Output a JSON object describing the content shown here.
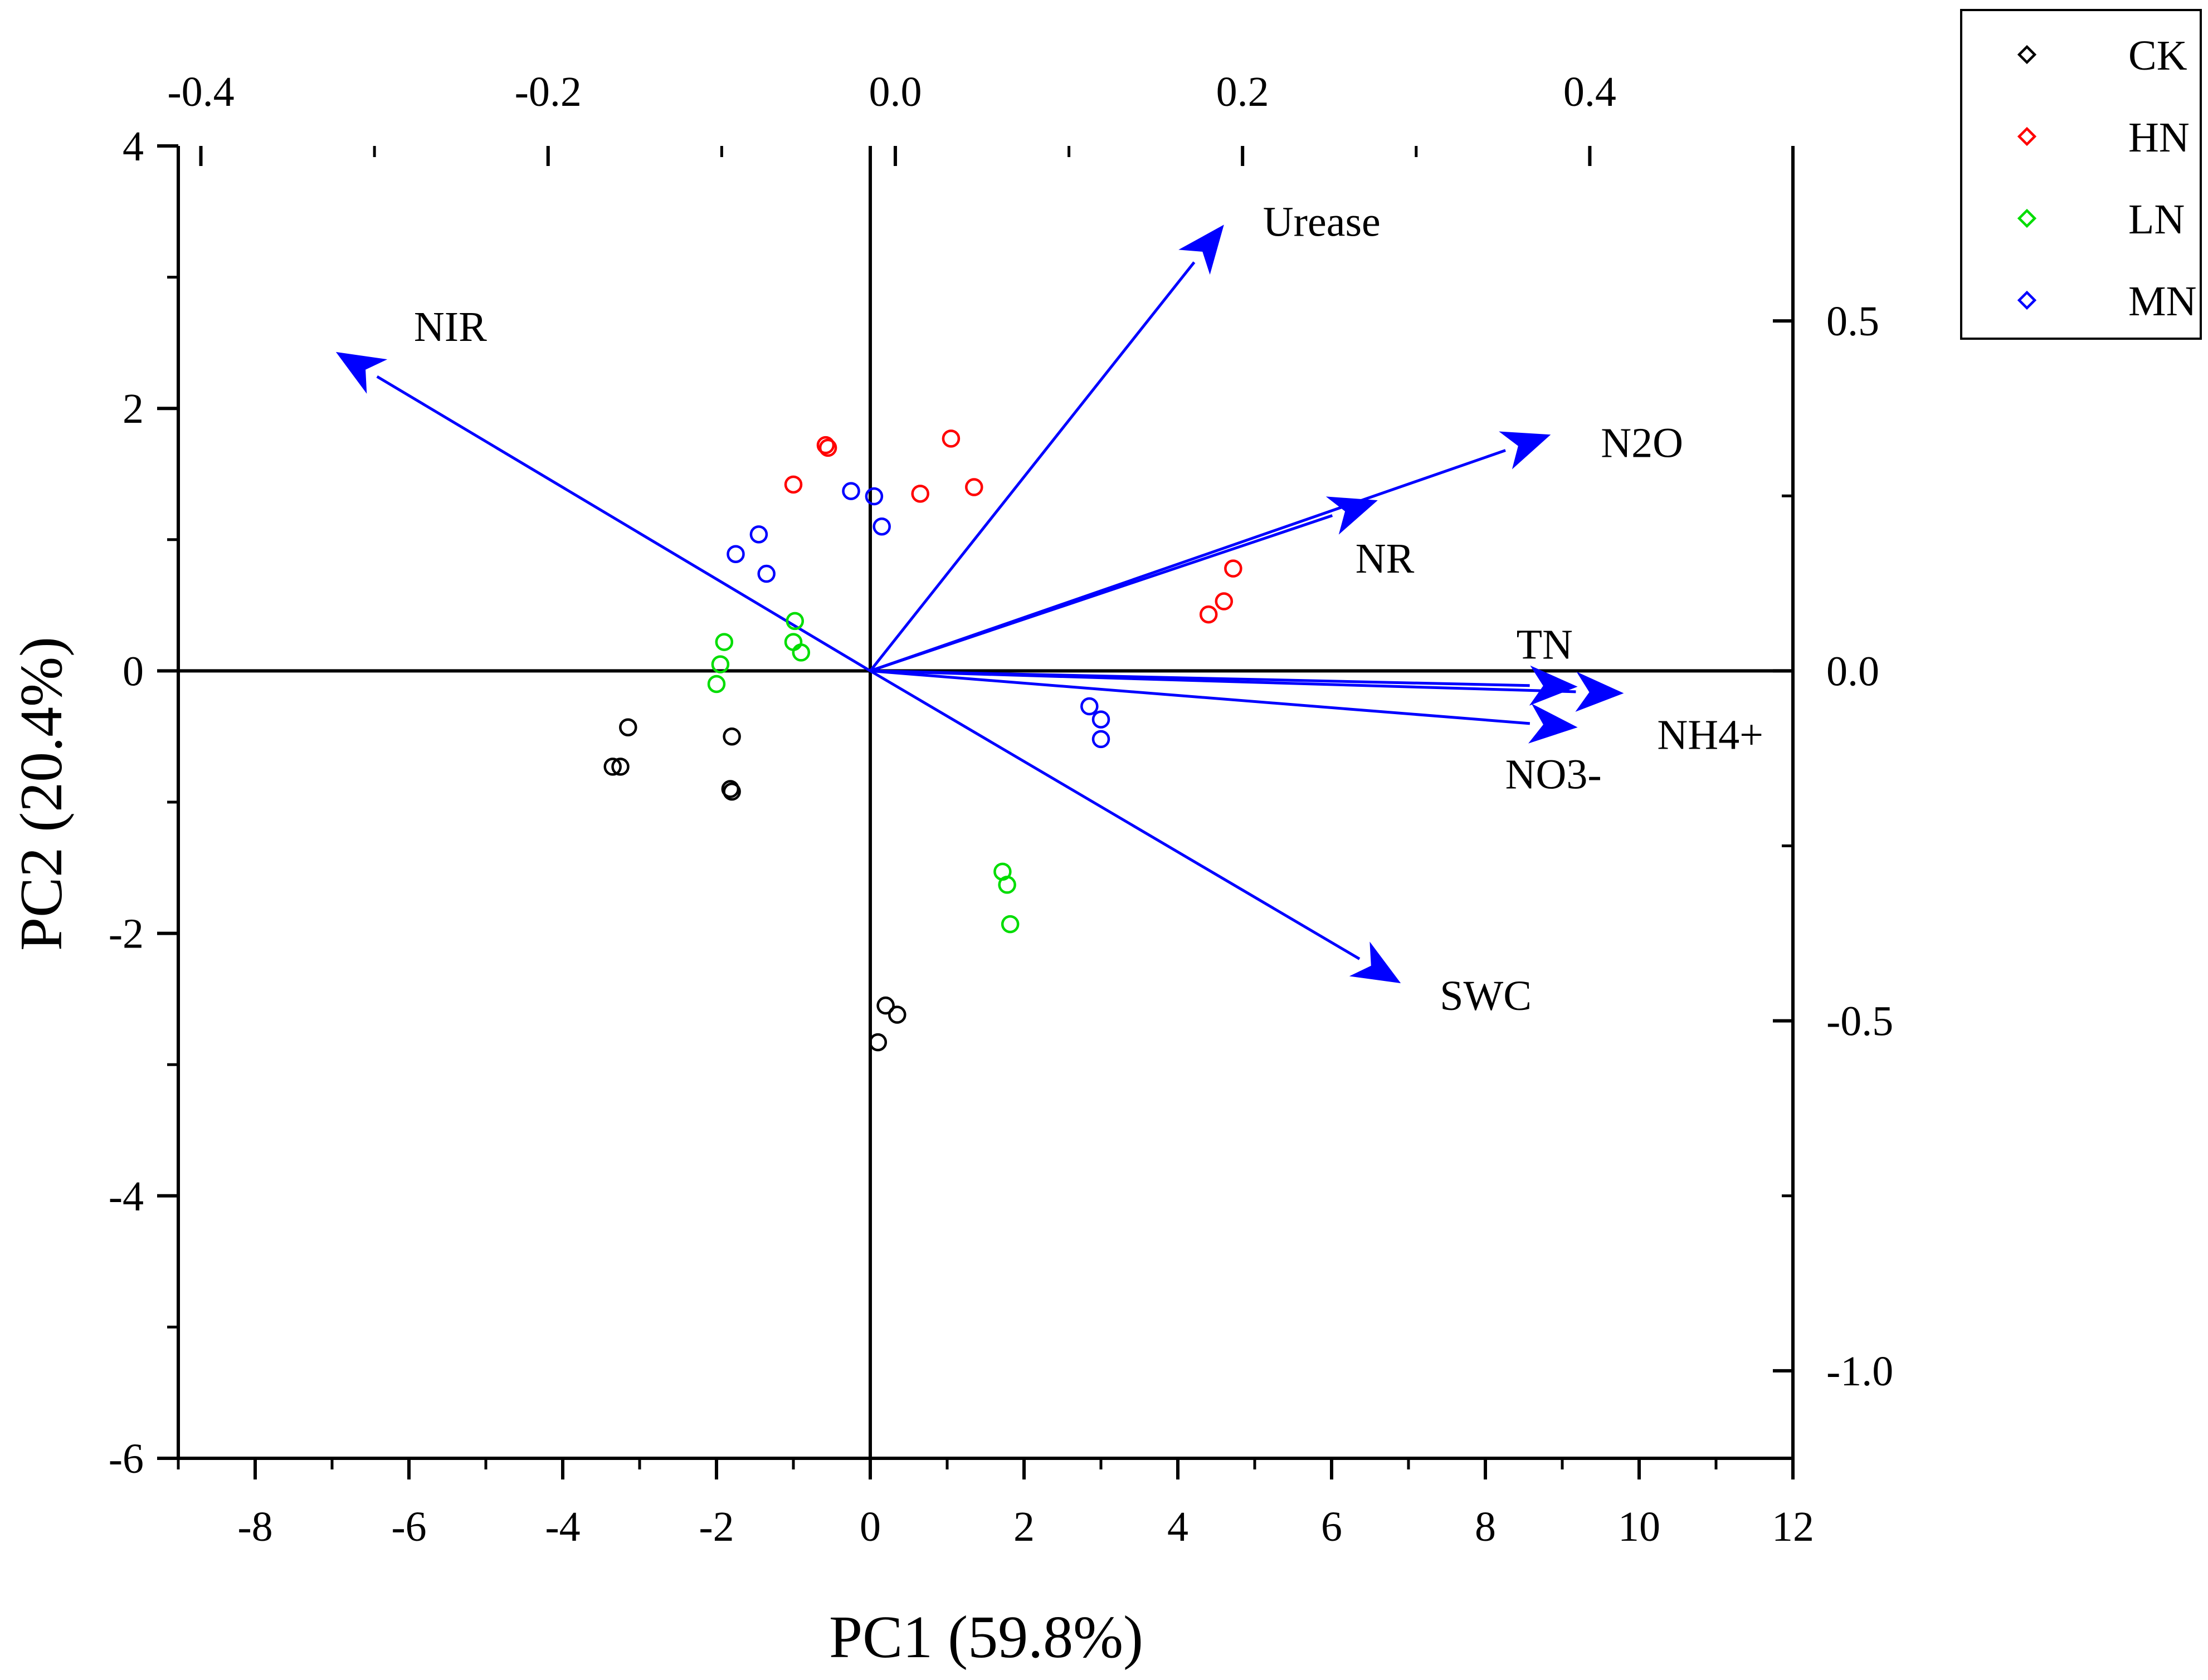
{
  "chart_data": {
    "type": "scatter",
    "subtype": "pca-biplot",
    "xlabel": "PC1 (59.8%)",
    "ylabel": "PC2 (20.4%)",
    "x_range": [
      -9,
      12
    ],
    "y_range": [
      -6,
      4
    ],
    "x_ticks": [
      -8,
      -6,
      -4,
      -2,
      0,
      2,
      4,
      6,
      8,
      10,
      12
    ],
    "x_tick_labels": [
      "-8",
      "-6",
      "-4",
      "-2",
      "0",
      "2",
      "4",
      "6",
      "8",
      "10",
      "12"
    ],
    "y_ticks": [
      -6,
      -4,
      -2,
      0,
      2,
      4
    ],
    "y_tick_labels": [
      "-6",
      "-4",
      "-2",
      "0",
      "2",
      "4"
    ],
    "top_range": [
      -0.413,
      0.517
    ],
    "top_ticks": [
      -0.4,
      -0.2,
      0.0,
      0.2,
      0.4
    ],
    "top_tick_labels": [
      "-0.4",
      "-0.2",
      "0.0",
      "0.2",
      "0.4"
    ],
    "right_range": [
      -1.125,
      0.75
    ],
    "right_ticks": [
      -1.0,
      -0.5,
      0.0,
      0.5
    ],
    "right_tick_labels": [
      "-1.0",
      "-0.5",
      "0.0",
      "0.5"
    ],
    "legend_position": "outside-top-right",
    "grid": false,
    "series": [
      {
        "name": "CK",
        "color": "#000000",
        "points": [
          [
            -3.15,
            -0.43
          ],
          [
            -3.35,
            -0.73
          ],
          [
            -3.25,
            -0.73
          ],
          [
            -1.8,
            -0.5
          ],
          [
            -1.82,
            -0.9
          ],
          [
            -1.8,
            -0.92
          ],
          [
            0.2,
            -2.55
          ],
          [
            0.35,
            -2.62
          ],
          [
            0.1,
            -2.83
          ]
        ]
      },
      {
        "name": "HN",
        "color": "#ff0000",
        "points": [
          [
            -1.0,
            1.42
          ],
          [
            -0.58,
            1.72
          ],
          [
            -0.55,
            1.7
          ],
          [
            1.05,
            1.77
          ],
          [
            0.65,
            1.35
          ],
          [
            1.35,
            1.4
          ],
          [
            4.72,
            0.78
          ],
          [
            4.6,
            0.53
          ],
          [
            4.4,
            0.43
          ]
        ]
      },
      {
        "name": "LN",
        "color": "#00dd00",
        "points": [
          [
            -1.9,
            0.22
          ],
          [
            -1.95,
            0.05
          ],
          [
            -2.0,
            -0.1
          ],
          [
            -0.98,
            0.38
          ],
          [
            -1.0,
            0.22
          ],
          [
            -0.9,
            0.14
          ],
          [
            1.72,
            -1.53
          ],
          [
            1.78,
            -1.63
          ],
          [
            1.82,
            -1.93
          ]
        ]
      },
      {
        "name": "MN",
        "color": "#0000ff",
        "points": [
          [
            -0.25,
            1.37
          ],
          [
            0.05,
            1.33
          ],
          [
            0.15,
            1.1
          ],
          [
            -1.45,
            1.04
          ],
          [
            -1.75,
            0.89
          ],
          [
            -1.35,
            0.74
          ],
          [
            2.85,
            -0.27
          ],
          [
            3.0,
            -0.37
          ],
          [
            3.0,
            -0.52
          ]
        ]
      }
    ],
    "loadings": [
      {
        "name": "Urease",
        "x": 4.6,
        "y": 3.4
      },
      {
        "name": "NIR",
        "x": -6.95,
        "y": 2.43
      },
      {
        "name": "N2O",
        "x": 8.85,
        "y": 1.8
      },
      {
        "name": "NR",
        "x": 6.6,
        "y": 1.3
      },
      {
        "name": "TN",
        "x": 9.2,
        "y": -0.12
      },
      {
        "name": "NH4+",
        "x": 9.8,
        "y": -0.17
      },
      {
        "name": "NO3-",
        "x": 9.2,
        "y": -0.43
      },
      {
        "name": "SWC",
        "x": 6.9,
        "y": -2.38
      }
    ]
  },
  "colors": {
    "vector": "#0000ff",
    "axis": "#000000"
  }
}
